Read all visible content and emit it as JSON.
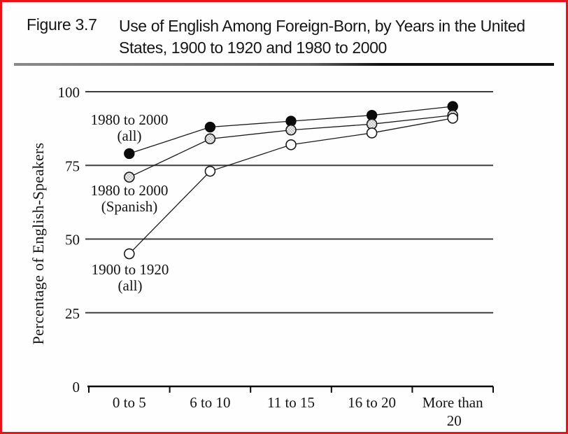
{
  "frame": {
    "border_color": "#e8141a",
    "background_color": "#fffefe"
  },
  "header": {
    "figure_label": "Figure 3.7",
    "title_line1": "Use of English Among Foreign-Born, by Years in the United",
    "title_line2": "States, 1900 to 1920 and 1980 to 2000"
  },
  "chart_data": {
    "type": "line",
    "title": "Use of English Among Foreign-Born, by Years in the United States, 1900 to 1920 and 1980 to 2000",
    "xlabel": "",
    "ylabel": "Percentage of English-Speakers",
    "ylim": [
      0,
      100
    ],
    "yticks": [
      0,
      25,
      50,
      75,
      100
    ],
    "grid": true,
    "legend_position": "inline-annotations",
    "categories": [
      "0 to 5",
      "6 to 10",
      "11 to 15",
      "16 to 20",
      "More than 20"
    ],
    "series": [
      {
        "name": "1980 to 2000 (all)",
        "marker": "filled",
        "marker_fill": "#0b0b0b",
        "line_color": "#1b1b1b",
        "values": [
          79,
          88,
          90,
          92,
          95
        ]
      },
      {
        "name": "1980 to 2000 (Spanish)",
        "marker": "shaded",
        "marker_fill": "#e3e3e3",
        "line_color": "#1b1b1b",
        "values": [
          71,
          84,
          87,
          89,
          92
        ]
      },
      {
        "name": "1900 to 1920 (all)",
        "marker": "open",
        "marker_fill": "#ffffff",
        "line_color": "#1b1b1b",
        "values": [
          45,
          73,
          82,
          86,
          91
        ]
      }
    ],
    "annotations": [
      {
        "series": "1980 to 2000 (all)",
        "line1": "1980 to 2000",
        "line2": "(all)"
      },
      {
        "series": "1980 to 2000 (Spanish)",
        "line1": "1980 to 2000",
        "line2": "(Spanish)"
      },
      {
        "series": "1900 to 1920 (all)",
        "line1": "1900 to 1920",
        "line2": "(all)"
      }
    ]
  }
}
